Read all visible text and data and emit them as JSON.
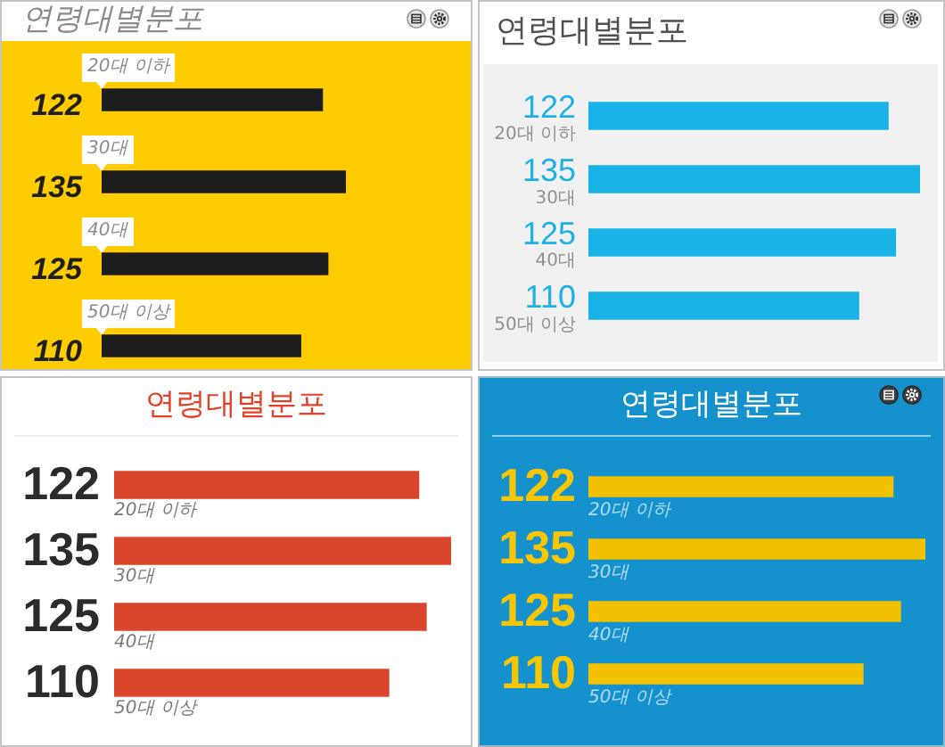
{
  "chart_data": [
    {
      "type": "bar",
      "orientation": "horizontal",
      "title": "연령대별분포",
      "categories": [
        "20대 이하",
        "30대",
        "40대",
        "50대 이상"
      ],
      "values": [
        122,
        135,
        125,
        110
      ],
      "color": "#1e1e1e",
      "data_labels": true,
      "tick_labels": "y"
    },
    {
      "type": "bar",
      "orientation": "horizontal",
      "title": "연령대별분포",
      "categories": [
        "20대 이하",
        "30대",
        "40대",
        "50대 이상"
      ],
      "values": [
        122,
        135,
        125,
        110
      ],
      "color": "#1ab3e8",
      "data_labels": true,
      "tick_labels": "y"
    },
    {
      "type": "bar",
      "orientation": "horizontal",
      "title": "연령대별분포",
      "categories": [
        "20대 이하",
        "30대",
        "40대",
        "50대 이상"
      ],
      "values": [
        122,
        135,
        125,
        110
      ],
      "color": "#d9462c",
      "data_labels": true,
      "tick_labels": "y"
    },
    {
      "type": "bar",
      "orientation": "horizontal",
      "title": "연령대별분포",
      "categories": [
        "20대 이하",
        "30대",
        "40대",
        "50대 이상"
      ],
      "values": [
        122,
        135,
        125,
        110
      ],
      "color": "#f2c200",
      "data_labels": true,
      "tick_labels": "y"
    }
  ]
}
